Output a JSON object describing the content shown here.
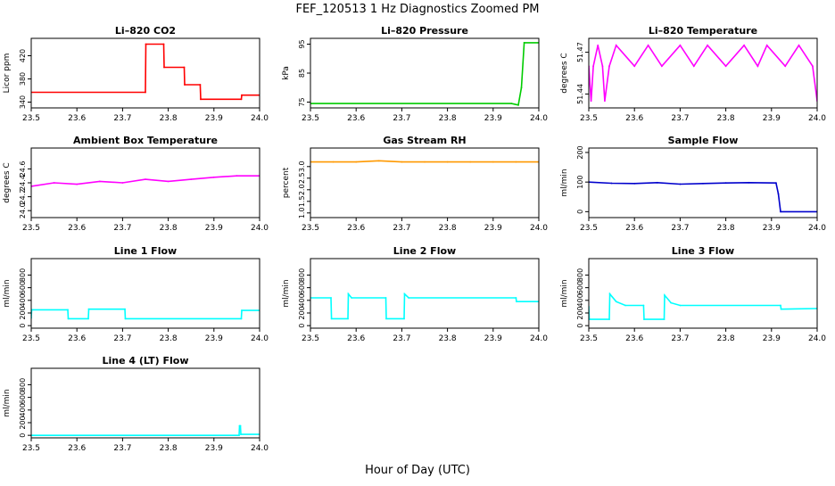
{
  "figure": {
    "title": "FEF_120513  1 Hz Diagnostics Zoomed PM",
    "xlabel": "Hour of Day (UTC)"
  },
  "chart_data": [
    {
      "type": "line",
      "title": "Li–820 CO2",
      "ylabel": "Licor ppm",
      "color": "#ff0000",
      "xlim": [
        23.5,
        24.0
      ],
      "ylim": [
        330,
        450
      ],
      "xticks": [
        23.5,
        23.6,
        23.7,
        23.8,
        23.9,
        24.0
      ],
      "yticks": [
        340,
        380,
        420
      ],
      "ytick_labels": [
        "340",
        "380",
        "420"
      ],
      "series": [
        {
          "x": [
            23.5,
            23.75,
            23.751,
            23.79,
            23.791,
            23.835,
            23.836,
            23.87,
            23.871,
            23.96,
            23.961,
            24.0
          ],
          "values": [
            357,
            357,
            440,
            440,
            400,
            400,
            370,
            370,
            345,
            345,
            352,
            352
          ]
        }
      ]
    },
    {
      "type": "line",
      "title": "Li–820 Pressure",
      "ylabel": "kPa",
      "color": "#00cc00",
      "xlim": [
        23.5,
        24.0
      ],
      "ylim": [
        73,
        97
      ],
      "xticks": [
        23.5,
        23.6,
        23.7,
        23.8,
        23.9,
        24.0
      ],
      "yticks": [
        75,
        85,
        95
      ],
      "ytick_labels": [
        "75",
        "85",
        "95"
      ],
      "series": [
        {
          "x": [
            23.5,
            23.94,
            23.955,
            23.962,
            23.968,
            24.0
          ],
          "values": [
            74.5,
            74.5,
            74,
            80,
            95.5,
            95.5
          ]
        }
      ]
    },
    {
      "type": "line",
      "title": "Li–820 Temperature",
      "ylabel": "degrees C",
      "color": "#ff00ff",
      "xlim": [
        23.5,
        24.0
      ],
      "ylim": [
        51.43,
        51.48
      ],
      "xticks": [
        23.5,
        23.6,
        23.7,
        23.8,
        23.9,
        24.0
      ],
      "yticks": [
        51.44,
        51.47
      ],
      "ytick_labels": [
        "51.44",
        "51.47"
      ],
      "series": [
        {
          "x": [
            23.5,
            23.505,
            23.51,
            23.52,
            23.53,
            23.535,
            23.545,
            23.56,
            23.6,
            23.63,
            23.66,
            23.7,
            23.73,
            23.76,
            23.8,
            23.84,
            23.87,
            23.89,
            23.93,
            23.96,
            23.99,
            24.0
          ],
          "values": [
            51.46,
            51.435,
            51.46,
            51.475,
            51.46,
            51.435,
            51.46,
            51.475,
            51.46,
            51.475,
            51.46,
            51.475,
            51.46,
            51.475,
            51.46,
            51.475,
            51.46,
            51.475,
            51.46,
            51.475,
            51.46,
            51.435
          ]
        }
      ]
    },
    {
      "type": "line",
      "title": "Ambient Box Temperature",
      "ylabel": "degrees C",
      "color": "#ff00ff",
      "xlim": [
        23.5,
        24.0
      ],
      "ylim": [
        23.9,
        24.9
      ],
      "xticks": [
        23.5,
        23.6,
        23.7,
        23.8,
        23.9,
        24.0
      ],
      "yticks": [
        24.0,
        24.2,
        24.4,
        24.6
      ],
      "ytick_labels": [
        "24.0",
        "24.2",
        "24.4",
        "24.6"
      ],
      "series": [
        {
          "x": [
            23.5,
            23.55,
            23.6,
            23.65,
            23.7,
            23.75,
            23.8,
            23.85,
            23.9,
            23.95,
            24.0
          ],
          "values": [
            24.35,
            24.4,
            24.38,
            24.42,
            24.4,
            24.45,
            24.42,
            24.45,
            24.48,
            24.5,
            24.5
          ]
        }
      ]
    },
    {
      "type": "line",
      "title": "Gas Stream RH",
      "ylabel": "percent",
      "color": "#ff9900",
      "xlim": [
        23.5,
        24.0
      ],
      "ylim": [
        0.8,
        3.8
      ],
      "xticks": [
        23.5,
        23.6,
        23.7,
        23.8,
        23.9,
        24.0
      ],
      "yticks": [
        1.0,
        1.5,
        2.0,
        2.5,
        3.0
      ],
      "ytick_labels": [
        "1.0",
        "1.5",
        "2.0",
        "2.5",
        "3.0"
      ],
      "series": [
        {
          "x": [
            23.5,
            23.55,
            23.6,
            23.65,
            23.7,
            23.75,
            23.8,
            23.85,
            23.9,
            23.95,
            24.0
          ],
          "values": [
            3.2,
            3.2,
            3.2,
            3.25,
            3.2,
            3.2,
            3.2,
            3.2,
            3.2,
            3.2,
            3.2
          ]
        }
      ]
    },
    {
      "type": "line",
      "title": "Sample Flow",
      "ylabel": "ml/min",
      "color": "#0000cc",
      "xlim": [
        23.5,
        24.0
      ],
      "ylim": [
        -20,
        215
      ],
      "xticks": [
        23.5,
        23.6,
        23.7,
        23.8,
        23.9,
        24.0
      ],
      "yticks": [
        0,
        100,
        200
      ],
      "ytick_labels": [
        "0",
        "100",
        "200"
      ],
      "series": [
        {
          "x": [
            23.5,
            23.55,
            23.6,
            23.65,
            23.7,
            23.75,
            23.8,
            23.85,
            23.91,
            23.915,
            23.92,
            24.0
          ],
          "values": [
            100,
            96,
            95,
            98,
            93,
            95,
            97,
            98,
            97,
            60,
            0,
            0
          ]
        }
      ]
    },
    {
      "type": "line",
      "title": "Line 1 Flow",
      "ylabel": "ml/min",
      "color": "#00ffff",
      "xlim": [
        23.5,
        24.0
      ],
      "ylim": [
        -40,
        1060
      ],
      "xticks": [
        23.5,
        23.6,
        23.7,
        23.8,
        23.9,
        24.0
      ],
      "yticks": [
        0,
        200,
        400,
        600,
        800
      ],
      "ytick_labels": [
        "0",
        "200",
        "400",
        "600",
        "800"
      ],
      "series": [
        {
          "x": [
            23.5,
            23.501,
            23.58,
            23.581,
            23.625,
            23.626,
            23.705,
            23.706,
            23.96,
            23.961,
            24.0
          ],
          "values": [
            120,
            250,
            250,
            110,
            110,
            260,
            260,
            110,
            110,
            240,
            240
          ]
        }
      ]
    },
    {
      "type": "line",
      "title": "Line 2 Flow",
      "ylabel": "ml/min",
      "color": "#00ffff",
      "xlim": [
        23.5,
        24.0
      ],
      "ylim": [
        -40,
        1060
      ],
      "xticks": [
        23.5,
        23.6,
        23.7,
        23.8,
        23.9,
        24.0
      ],
      "yticks": [
        0,
        200,
        400,
        600,
        800
      ],
      "ytick_labels": [
        "0",
        "200",
        "400",
        "600",
        "800"
      ],
      "series": [
        {
          "x": [
            23.5,
            23.545,
            23.546,
            23.582,
            23.583,
            23.59,
            23.665,
            23.666,
            23.705,
            23.706,
            23.715,
            23.95,
            23.951,
            24.0
          ],
          "values": [
            440,
            440,
            110,
            110,
            500,
            440,
            440,
            110,
            110,
            500,
            440,
            440,
            380,
            380
          ]
        }
      ]
    },
    {
      "type": "line",
      "title": "Line 3 Flow",
      "ylabel": "ml/min",
      "color": "#00ffff",
      "xlim": [
        23.5,
        24.0
      ],
      "ylim": [
        -40,
        1060
      ],
      "xticks": [
        23.5,
        23.6,
        23.7,
        23.8,
        23.9,
        24.0
      ],
      "yticks": [
        0,
        200,
        400,
        600,
        800
      ],
      "ytick_labels": [
        "0",
        "200",
        "400",
        "600",
        "800"
      ],
      "series": [
        {
          "x": [
            23.5,
            23.501,
            23.545,
            23.546,
            23.56,
            23.58,
            23.62,
            23.621,
            23.665,
            23.666,
            23.68,
            23.7,
            23.92,
            23.921,
            24.0
          ],
          "values": [
            300,
            100,
            100,
            500,
            380,
            320,
            320,
            100,
            100,
            480,
            360,
            320,
            320,
            260,
            270
          ]
        }
      ]
    },
    {
      "type": "line",
      "title": "Line 4 (LT) Flow",
      "ylabel": "ml/min",
      "color": "#00ffff",
      "xlim": [
        23.5,
        24.0
      ],
      "ylim": [
        -40,
        1060
      ],
      "xticks": [
        23.5,
        23.6,
        23.7,
        23.8,
        23.9,
        24.0
      ],
      "yticks": [
        0,
        200,
        400,
        600,
        800
      ],
      "ytick_labels": [
        "0",
        "200",
        "400",
        "600",
        "800"
      ],
      "series": [
        {
          "x": [
            23.5,
            23.955,
            23.956,
            23.958,
            23.959,
            24.0
          ],
          "values": [
            0,
            0,
            150,
            150,
            15,
            15
          ]
        }
      ]
    }
  ]
}
